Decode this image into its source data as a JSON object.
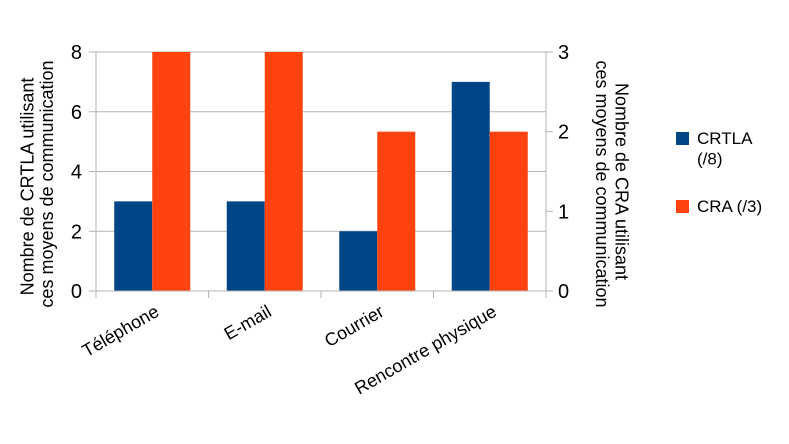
{
  "chart_data": {
    "type": "bar",
    "categories": [
      "Téléphone",
      "E-mail",
      "Courrier",
      "Rencontre physique"
    ],
    "series": [
      {
        "name": "CRTLA (/8)",
        "legend_lines": [
          "CRTLA",
          "(/8)"
        ],
        "axis": "left",
        "color": "#004586",
        "values": [
          3,
          3,
          2,
          7
        ]
      },
      {
        "name": "CRA (/3)",
        "legend_lines": [
          "CRA (/3)"
        ],
        "axis": "right",
        "color": "#ff420e",
        "values": [
          3,
          3,
          2,
          2
        ]
      }
    ],
    "y_left": {
      "label_lines": [
        "Nombre de CRTLA utilisant",
        "ces moyens de communication"
      ],
      "ylim": [
        0,
        8
      ],
      "ticks": [
        "0",
        "2",
        "4",
        "6",
        "8"
      ]
    },
    "y_right": {
      "label_lines": [
        "Nombre de CRA utilisant",
        "ces moyens de communication"
      ],
      "ylim": [
        0,
        3
      ],
      "ticks": [
        "0",
        "1",
        "2",
        "3"
      ]
    },
    "grid": true,
    "legend_position": "right"
  }
}
